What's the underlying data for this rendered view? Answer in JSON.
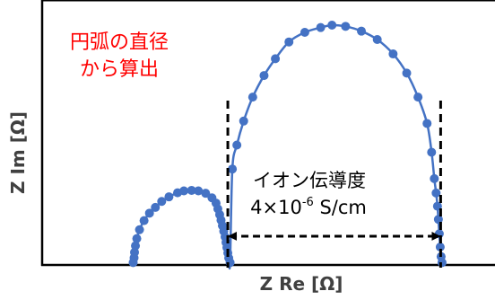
{
  "chart_data": {
    "type": "scatter",
    "title": "",
    "xlabel": "Z Re [Ω]",
    "ylabel": "Z Im [Ω]",
    "grid": false,
    "xlim": [
      0,
      100
    ],
    "ylim": [
      0,
      100
    ],
    "series_color": "#4472C4",
    "guide_color": "#000000",
    "note_color": "#FF0000",
    "series": [
      {
        "points": [
          [
            20.1,
            1.0
          ],
          [
            20.3,
            3.0
          ],
          [
            20.4,
            5.3
          ],
          [
            20.6,
            8.0
          ],
          [
            20.9,
            11.0
          ],
          [
            21.5,
            14.7
          ],
          [
            22.5,
            18.5
          ],
          [
            23.7,
            21.6
          ],
          [
            25.0,
            24.0
          ],
          [
            26.4,
            26.5
          ],
          [
            28.0,
            28.4
          ],
          [
            29.9,
            30.1
          ],
          [
            31.3,
            30.9
          ],
          [
            33.0,
            31.1
          ],
          [
            34.5,
            30.9
          ],
          [
            36.1,
            29.9
          ],
          [
            37.5,
            28.0
          ],
          [
            38.4,
            25.8
          ],
          [
            38.8,
            23.4
          ],
          [
            39.2,
            21.0
          ],
          [
            39.5,
            18.7
          ],
          [
            39.8,
            16.4
          ],
          [
            40.1,
            14.1
          ],
          [
            40.4,
            11.7
          ],
          [
            40.6,
            9.4
          ],
          [
            40.8,
            7.2
          ],
          [
            41.0,
            5.0
          ],
          [
            41.2,
            2.9
          ],
          [
            41.5,
            1.0
          ],
          [
            42.0,
            40.0
          ],
          [
            43.0,
            50.0
          ],
          [
            44.5,
            60.0
          ],
          [
            46.5,
            70.0
          ],
          [
            49.0,
            79.0
          ],
          [
            51.5,
            86.0
          ],
          [
            54.5,
            93.0
          ],
          [
            58.0,
            97.0
          ],
          [
            61.5,
            99.0
          ],
          [
            64.0,
            100.0
          ],
          [
            67.0,
            99.5
          ],
          [
            70.5,
            97.5
          ],
          [
            74.0,
            94.0
          ],
          [
            77.5,
            88.0
          ],
          [
            80.5,
            80.0
          ],
          [
            83.0,
            70.0
          ],
          [
            85.0,
            59.0
          ],
          [
            86.0,
            47.0
          ],
          [
            86.6,
            36.0
          ],
          [
            87.0,
            30.0
          ],
          [
            87.3,
            24.5
          ],
          [
            87.5,
            19.0
          ],
          [
            87.7,
            13.0
          ],
          [
            87.9,
            7.5
          ],
          [
            88.1,
            3.5
          ],
          [
            88.3,
            1.0
          ]
        ]
      }
    ],
    "annotations": {
      "note_line1": "円弧の直径",
      "note_line2": "から算出",
      "conductivity_label": "イオン伝導度",
      "conductivity_value_prefix": "4×10",
      "conductivity_value_exp": "-6",
      "conductivity_value_unit": " S/cm",
      "left_boundary_x": 41.0,
      "right_boundary_x": 88.0,
      "arrow_y": 12.0
    }
  }
}
